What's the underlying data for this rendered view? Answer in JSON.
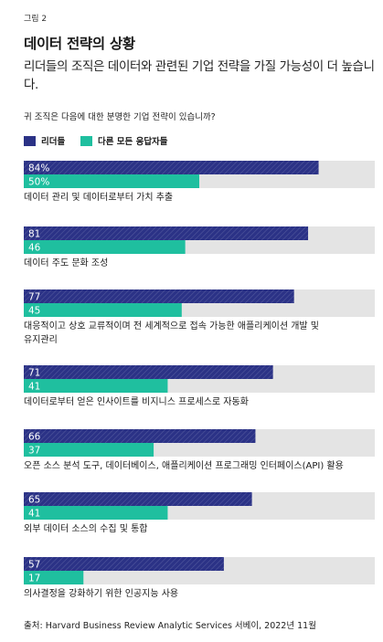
{
  "figure_label": "그림 2",
  "title": "데이터 전략의 상황",
  "subtitle": "리더들의 조직은 데이터와 관련된 기업 전략을 가질 가능성이 더 높습니다.",
  "question": "귀 조직은 다음에 대한 분명한 기업 전략이 있습니까?",
  "source": "출처: Harvard Business Review Analytic Services 서베이, 2022년 11월",
  "colors": {
    "leaders": "#2b3286",
    "others": "#1fbf9f",
    "track": "#e4e4e4"
  },
  "chart_data": {
    "type": "bar",
    "orientation": "horizontal",
    "xlim": [
      0,
      100
    ],
    "grid": false,
    "legend_position": "top-left",
    "series": [
      {
        "name": "리더들",
        "values": [
          84,
          81,
          77,
          71,
          66,
          65,
          57
        ],
        "labels": [
          "84%",
          "81",
          "77",
          "71",
          "66",
          "65",
          "57"
        ]
      },
      {
        "name": "다른 모든 응답자들",
        "values": [
          50,
          46,
          45,
          41,
          37,
          41,
          17
        ],
        "labels": [
          "50%",
          "46",
          "45",
          "41",
          "37",
          "41",
          "17"
        ]
      }
    ],
    "categories": [
      [
        "데이터 관리 및 데이터로부터 가치 추출"
      ],
      [
        "데이터 주도 문화 조성"
      ],
      [
        "대응적이고 상호 교류적이며 전 세계적으로 접속 가능한 애플리케이션 개발 및",
        "유지관리"
      ],
      [
        "데이터로부터 얻은 인사이트를 비지니스 프로세스로 자동화"
      ],
      [
        "오픈 소스 분석 도구, 데이터베이스, 애플리케이션 프로그래밍 인터페이스(API) 활용"
      ],
      [
        "외부 데이터 소스의 수집 및 통합"
      ],
      [
        "의사결정을 강화하기 위한 인공지능 사용"
      ]
    ]
  }
}
